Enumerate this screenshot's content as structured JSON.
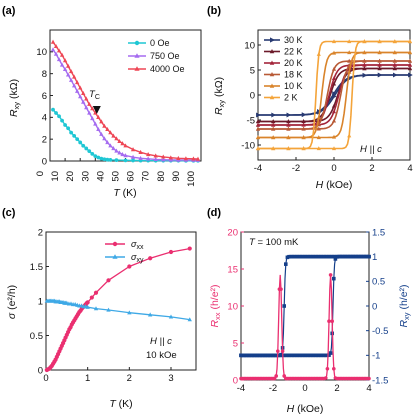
{
  "colors": {
    "cyan": "#1fc7d4",
    "purple": "#a56cf0",
    "red": "#ee4655",
    "pink": "#ea2f70",
    "lightblue": "#3fa9e6",
    "navy": "#143f8a",
    "temps": [
      "#283a72",
      "#6c1a2a",
      "#a3243a",
      "#b85a36",
      "#d9842b",
      "#f4a43a"
    ]
  },
  "chart_data": [
    {
      "panel": "(a)",
      "type": "line",
      "ylabel_main": "R",
      "ylabel_sub": "xy",
      "ylabel_unit": "(kΩ)",
      "xlabel_main": "T",
      "xlabel_unit": "(K)",
      "xlim": [
        0,
        100
      ],
      "ylim": [
        0,
        12
      ],
      "xticks": [
        "0",
        "10",
        "20",
        "30",
        "40",
        "50",
        "60",
        "70",
        "80",
        "90",
        "100"
      ],
      "yticks": [
        "0",
        "2",
        "4",
        "6",
        "8",
        "10"
      ],
      "annotation_main": "T",
      "annotation_sub": "C",
      "annotation_x": 31,
      "series": [
        {
          "name": "0 Oe",
          "color": "cyan",
          "x": [
            2,
            4,
            6,
            8,
            10,
            12,
            14,
            16,
            18,
            20,
            22,
            24,
            26,
            28,
            30,
            32,
            34,
            36,
            38,
            40,
            44,
            50,
            55,
            60,
            65,
            70,
            75,
            80,
            85,
            90,
            95,
            98
          ],
          "y": [
            4.7,
            4.4,
            4.1,
            3.7,
            3.3,
            3.0,
            2.6,
            2.3,
            2.0,
            1.7,
            1.4,
            1.15,
            0.9,
            0.65,
            0.45,
            0.32,
            0.22,
            0.16,
            0.12,
            0.1,
            0.08,
            0.06,
            0.05,
            0.04,
            0.04,
            0.03,
            0.03,
            0.03,
            0.03,
            0.02,
            0.02,
            0.02
          ]
        },
        {
          "name": "750 Oe",
          "color": "purple",
          "x": [
            2,
            4,
            6,
            8,
            10,
            12,
            14,
            16,
            18,
            20,
            22,
            24,
            26,
            28,
            30,
            32,
            34,
            36,
            38,
            40,
            42,
            44,
            46,
            48,
            50,
            55,
            60,
            65,
            70,
            75,
            80,
            85,
            90,
            95,
            98
          ],
          "y": [
            10.2,
            9.8,
            9.3,
            8.8,
            8.4,
            7.9,
            7.4,
            6.9,
            6.4,
            5.9,
            5.4,
            4.9,
            4.4,
            3.9,
            3.4,
            2.9,
            2.45,
            2.05,
            1.7,
            1.4,
            1.15,
            0.92,
            0.75,
            0.6,
            0.5,
            0.35,
            0.25,
            0.2,
            0.15,
            0.12,
            0.1,
            0.09,
            0.08,
            0.07,
            0.07
          ]
        },
        {
          "name": "4000 Oe",
          "color": "red",
          "x": [
            2,
            4,
            6,
            8,
            10,
            12,
            14,
            16,
            18,
            20,
            22,
            24,
            26,
            28,
            30,
            32,
            34,
            36,
            38,
            40,
            42,
            44,
            46,
            48,
            50,
            55,
            60,
            65,
            70,
            75,
            80,
            85,
            90,
            95,
            98
          ],
          "y": [
            10.9,
            10.5,
            10.1,
            9.7,
            9.2,
            8.7,
            8.2,
            7.7,
            7.2,
            6.7,
            6.2,
            5.7,
            5.2,
            4.8,
            4.4,
            4.0,
            3.6,
            3.2,
            2.9,
            2.6,
            2.3,
            2.05,
            1.8,
            1.6,
            1.4,
            1.05,
            0.8,
            0.6,
            0.48,
            0.38,
            0.3,
            0.25,
            0.22,
            0.2,
            0.18
          ]
        }
      ]
    },
    {
      "panel": "(b)",
      "type": "line",
      "ylabel_main": "R",
      "ylabel_sub": "xy",
      "ylabel_unit": "(kΩ)",
      "xlabel_main": "H",
      "xlabel_unit": "(kOe)",
      "xlim": [
        -4,
        4
      ],
      "ylim": [
        -13,
        13
      ],
      "xticks": [
        "-4",
        "-2",
        "0",
        "2",
        "4"
      ],
      "yticks": [
        "-10",
        "-5",
        "0",
        "5",
        "10"
      ],
      "annotation_main": "H",
      "annotation_rest": "|| c",
      "series": [
        {
          "name": "30 K",
          "color_index": 0,
          "sat": 4.0,
          "coercive": 0.05,
          "width": 1.3
        },
        {
          "name": "22 K",
          "color_index": 1,
          "sat": 5.3,
          "coercive": 0.2,
          "width": 0.9
        },
        {
          "name": "20 K",
          "color_index": 2,
          "sat": 6.0,
          "coercive": 0.25,
          "width": 0.8
        },
        {
          "name": "18 K",
          "color_index": 3,
          "sat": 6.8,
          "coercive": 0.35,
          "width": 0.7
        },
        {
          "name": "10 K",
          "color_index": 4,
          "sat": 8.5,
          "coercive": 0.65,
          "width": 0.5
        },
        {
          "name": "2 K",
          "color_index": 5,
          "sat": 10.7,
          "coercive": 0.95,
          "width": 0.3
        }
      ]
    },
    {
      "panel": "(c)",
      "type": "line",
      "ylabel_main": "σ",
      "ylabel_unit": "(e²/h)",
      "xlabel_main": "T",
      "xlabel_unit": "(K)",
      "xlim": [
        0,
        3.6
      ],
      "ylim": [
        0,
        2
      ],
      "xticks": [
        "0",
        "1",
        "2",
        "3"
      ],
      "yticks": [
        "0",
        "0.5",
        "1",
        "1.5",
        "2"
      ],
      "annotation_main": "H",
      "annotation_rest": "|| c",
      "annotation_line2": "10 kOe",
      "series": [
        {
          "name_main": "σ",
          "name_sub": "xx",
          "color": "pink",
          "x": [
            0.02,
            0.05,
            0.08,
            0.11,
            0.14,
            0.17,
            0.2,
            0.23,
            0.26,
            0.29,
            0.32,
            0.35,
            0.38,
            0.41,
            0.44,
            0.47,
            0.5,
            0.53,
            0.56,
            0.59,
            0.62,
            0.65,
            0.68,
            0.71,
            0.74,
            0.77,
            0.8,
            0.83,
            0.86,
            0.89,
            0.92,
            0.95,
            0.98,
            1.0,
            1.1,
            1.2,
            1.5,
            2.0,
            2.5,
            3.0,
            3.45
          ],
          "y": [
            0.0,
            0.01,
            0.02,
            0.04,
            0.06,
            0.09,
            0.12,
            0.15,
            0.19,
            0.23,
            0.27,
            0.31,
            0.35,
            0.39,
            0.43,
            0.47,
            0.51,
            0.55,
            0.59,
            0.62,
            0.66,
            0.69,
            0.72,
            0.75,
            0.78,
            0.81,
            0.84,
            0.86,
            0.89,
            0.91,
            0.93,
            0.95,
            0.97,
            0.98,
            1.05,
            1.12,
            1.3,
            1.5,
            1.62,
            1.71,
            1.76
          ]
        },
        {
          "name_main": "σ",
          "name_sub": "xy",
          "color": "lightblue",
          "x": [
            0.02,
            0.05,
            0.08,
            0.11,
            0.14,
            0.17,
            0.2,
            0.23,
            0.26,
            0.29,
            0.32,
            0.35,
            0.38,
            0.41,
            0.44,
            0.47,
            0.5,
            0.55,
            0.6,
            0.65,
            0.7,
            0.75,
            0.8,
            0.85,
            0.9,
            0.95,
            1.0,
            1.2,
            1.5,
            2.0,
            2.5,
            3.0,
            3.45
          ],
          "y": [
            1.0,
            1.0,
            1.0,
            1.0,
            1.0,
            1.0,
            1.0,
            0.99,
            0.99,
            0.99,
            0.99,
            0.98,
            0.98,
            0.98,
            0.97,
            0.97,
            0.97,
            0.96,
            0.96,
            0.95,
            0.95,
            0.94,
            0.93,
            0.93,
            0.92,
            0.92,
            0.91,
            0.89,
            0.87,
            0.83,
            0.8,
            0.77,
            0.73
          ]
        }
      ]
    },
    {
      "panel": "(d)",
      "type": "line",
      "ylabel_left_main": "R",
      "ylabel_left_sub": "xx",
      "ylabel_left_unit": "(h/e²)",
      "ylabel_right_main": "R",
      "ylabel_right_sub": "xy",
      "ylabel_right_unit": "(h/e²)",
      "xlabel_main": "H",
      "xlabel_unit": "(kOe)",
      "xlim": [
        -4,
        4
      ],
      "ylim_left": [
        0,
        20
      ],
      "ylim_right": [
        -1.5,
        1.5
      ],
      "xticks": [
        "-4",
        "-2",
        "0",
        "2",
        "4"
      ],
      "yticks_left": [
        "0",
        "5",
        "10",
        "15",
        "20"
      ],
      "yticks_right": [
        "-1.5",
        "-1",
        "-0.5",
        "0",
        "0.5",
        "1",
        "1.5"
      ],
      "annotation_main": "T",
      "annotation_rest": " = 100 mK",
      "series": [
        {
          "name": "Rxx",
          "color": "pink",
          "axis": "left",
          "peaks": [
            -1.55,
            1.6
          ],
          "peak_height": 14,
          "base": 0.2
        },
        {
          "name": "Rxy",
          "color": "navy",
          "axis": "right",
          "switch": [
            -1.3,
            1.75
          ],
          "sat": 1.0
        }
      ]
    }
  ]
}
